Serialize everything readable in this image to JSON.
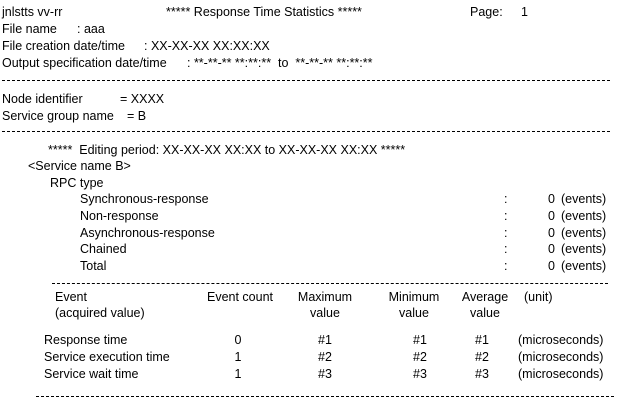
{
  "header": {
    "program": "jnlstts vv-rr",
    "title": "***** Response Time Statistics *****",
    "page_label": "Page:",
    "page_number": "1"
  },
  "file_info": {
    "file_name_label": "File name",
    "file_name_value": ": aaa",
    "creation_label": "File creation date/time",
    "creation_value": ": XX-XX-XX XX:XX:XX",
    "output_label": "Output specification date/time",
    "output_value": ": **-**-** **:**:**  to  **-**-** **:**:**"
  },
  "node": {
    "node_label": "Node identifier",
    "node_value": "= XXXX",
    "group_label": "Service group name",
    "group_value": "= B"
  },
  "editing_period": "*****  Editing period: XX-XX-XX XX:XX to XX-XX-XX XX:XX *****",
  "service_name": "<Service name B>",
  "rpc": {
    "type_label": "RPC type",
    "rows": [
      {
        "label": "Synchronous-response",
        "sep": ":",
        "count": "0",
        "unit": "(events)"
      },
      {
        "label": "Non-response",
        "sep": ":",
        "count": "0",
        "unit": "(events)"
      },
      {
        "label": "Asynchronous-response",
        "sep": ":",
        "count": "0",
        "unit": "(events)"
      },
      {
        "label": "Chained",
        "sep": ":",
        "count": "0",
        "unit": "(events)"
      },
      {
        "label": "Total",
        "sep": ":",
        "count": "0",
        "unit": "(events)"
      }
    ]
  },
  "event_table": {
    "headers": {
      "event_line1": "Event",
      "event_line2": "(acquired value)",
      "count": "Event count",
      "max_line1": "Maximum",
      "max_line2": "value",
      "min_line1": "Minimum",
      "min_line2": "value",
      "avg_line1": "Average",
      "avg_line2": "value",
      "unit": "(unit)"
    },
    "rows": [
      {
        "event": "Response time",
        "count": "0",
        "max": "#1",
        "min": "#1",
        "avg": "#1",
        "unit": "(microseconds)"
      },
      {
        "event": "Service execution time",
        "count": "1",
        "max": "#2",
        "min": "#2",
        "avg": "#2",
        "unit": "(microseconds)"
      },
      {
        "event": "Service wait time",
        "count": "1",
        "max": "#3",
        "min": "#3",
        "avg": "#3",
        "unit": "(microseconds)"
      }
    ]
  }
}
